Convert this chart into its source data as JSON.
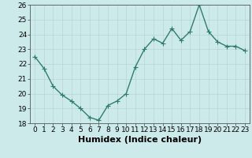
{
  "x": [
    0,
    1,
    2,
    3,
    4,
    5,
    6,
    7,
    8,
    9,
    10,
    11,
    12,
    13,
    14,
    15,
    16,
    17,
    18,
    19,
    20,
    21,
    22,
    23
  ],
  "y": [
    22.5,
    21.7,
    20.5,
    19.9,
    19.5,
    19.0,
    18.4,
    18.2,
    19.2,
    19.5,
    20.0,
    21.8,
    23.0,
    23.7,
    23.4,
    24.4,
    23.6,
    24.2,
    26.0,
    24.2,
    23.5,
    23.2,
    23.2,
    22.9
  ],
  "line_color": "#2e7d6e",
  "marker_color": "#2e7d6e",
  "bg_color": "#cceaea",
  "grid_color": "#b8d4d4",
  "xlabel": "Humidex (Indice chaleur)",
  "ylim": [
    18,
    26
  ],
  "yticks": [
    18,
    19,
    20,
    21,
    22,
    23,
    24,
    25,
    26
  ],
  "xticks": [
    0,
    1,
    2,
    3,
    4,
    5,
    6,
    7,
    8,
    9,
    10,
    11,
    12,
    13,
    14,
    15,
    16,
    17,
    18,
    19,
    20,
    21,
    22,
    23
  ],
  "xlabel_fontsize": 8,
  "tick_fontsize": 6.5,
  "line_width": 1.0,
  "marker_size": 2.5
}
